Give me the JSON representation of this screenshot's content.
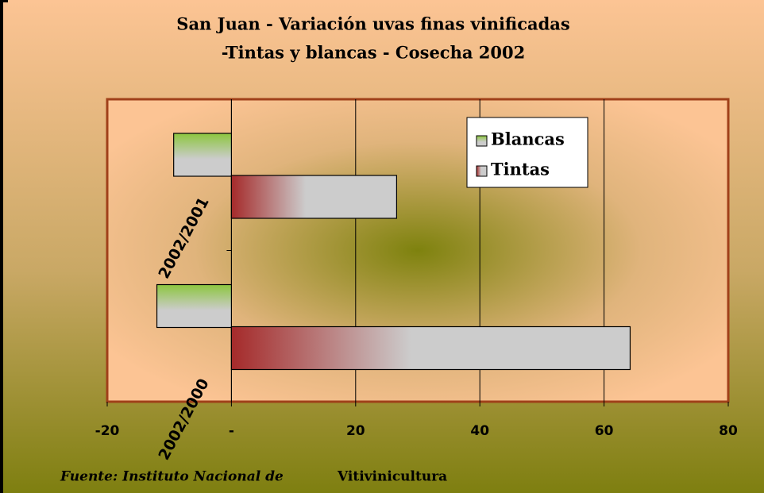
{
  "chart_data": {
    "type": "hbar",
    "title": [
      "San Juan  - Variación uvas finas vinificadas",
      "-Tintas y blancas - Cosecha 2002"
    ],
    "categories": [
      "2002/2001",
      "2002/2000"
    ],
    "series": [
      {
        "name": "Blancas",
        "color": "#8cc63e",
        "values": [
          -9.3,
          -12
        ]
      },
      {
        "name": "Tintas",
        "color": "#a52a2a",
        "values": [
          26.6,
          64.2
        ]
      }
    ],
    "xlim": [
      -20,
      80
    ],
    "xticks": [
      -20,
      {
        "value": 0,
        "label": "-"
      },
      20,
      40,
      60,
      80
    ],
    "grid": true,
    "legend": "top-right",
    "source": [
      "Fuente: Instituto Nacional de",
      "Vitivinicultura"
    ]
  }
}
